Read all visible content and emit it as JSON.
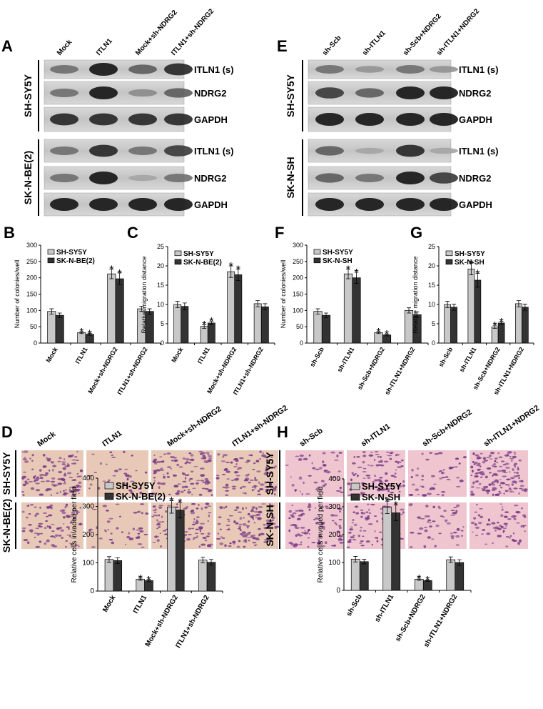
{
  "blots": [
    {
      "letter": "A",
      "columns": [
        "Mock",
        "ITLN1",
        "Mock+sh-NDRG2",
        "ITLN1+sh-NDRG2"
      ],
      "cell_lines": [
        "SH-SY5Y",
        "SK-N-BE(2)"
      ],
      "proteins": [
        "ITLN1 (s)",
        "NDRG2",
        "GAPDH"
      ]
    },
    {
      "letter": "E",
      "columns": [
        "sh-Scb",
        "sh-ITLN1",
        "sh-Scb+NDRG2",
        "sh-ITLN1+NDRG2"
      ],
      "cell_lines": [
        "SH-SY5Y",
        "SK-N-SH"
      ],
      "proteins": [
        "ITLN1 (s)",
        "NDRG2",
        "GAPDH"
      ]
    }
  ],
  "micrographs": [
    {
      "letter": "D",
      "columns": [
        "Mock",
        "ITLN1",
        "Mock+sh-NDRG2",
        "ITLN1+sh-NDRG2"
      ],
      "cell_lines": [
        "SH-SY5Y",
        "SK-N-BE(2)"
      ]
    },
    {
      "letter": "H",
      "columns": [
        "sh-Scb",
        "sh-ITLN1",
        "sh-Scb+NDRG2",
        "sh-ITLN1+NDRG2"
      ],
      "cell_lines": [
        "SH-SY5Y",
        "SK-N-SH"
      ]
    }
  ],
  "chart_data": [
    {
      "type": "bar",
      "letter": "B",
      "y_label": "Number of colonies/well",
      "categories": [
        "Mock",
        "ITLN1",
        "Mock+sh-NDRG2",
        "ITLN1+sh-NDRG2"
      ],
      "ylim": [
        0,
        300
      ],
      "yticks": [
        0,
        50,
        100,
        150,
        200,
        250,
        300
      ],
      "series": [
        {
          "name": "SH-SY5Y",
          "color": "#c8c8c8",
          "values": [
            97,
            32,
            212,
            105
          ],
          "errors": [
            8,
            3,
            15,
            8
          ],
          "annotations": [
            null,
            "*",
            "*",
            null
          ]
        },
        {
          "name": "SK-N-BE(2)",
          "color": "#333333",
          "values": [
            85,
            27,
            197,
            97
          ],
          "errors": [
            7,
            3,
            18,
            8
          ],
          "annotations": [
            null,
            "*",
            "*",
            null
          ]
        }
      ]
    },
    {
      "type": "bar",
      "letter": "C",
      "y_label": "Relative migration distance",
      "categories": [
        "Mock",
        "ITLN1",
        "Mock+sh-NDRG2",
        "ITLN1+sh-NDRG2"
      ],
      "ylim": [
        0,
        25
      ],
      "yticks": [
        0,
        5,
        10,
        15,
        20,
        25
      ],
      "series": [
        {
          "name": "SH-SY5Y",
          "color": "#c8c8c8",
          "values": [
            10,
            4.3,
            18.5,
            10.2
          ],
          "errors": [
            0.8,
            0.5,
            1.5,
            0.8
          ],
          "annotations": [
            null,
            "*",
            "*",
            null
          ]
        },
        {
          "name": "SK-N-BE(2)",
          "color": "#333333",
          "values": [
            9.5,
            5.2,
            17.7,
            9.4
          ],
          "errors": [
            0.9,
            0.5,
            1.5,
            0.8
          ],
          "annotations": [
            null,
            "*",
            "*",
            null
          ]
        }
      ]
    },
    {
      "type": "bar",
      "letter": "F",
      "y_label": "Number of colonies/well",
      "categories": [
        "sh-Scb",
        "sh-ITLN1",
        "sh-Scb+NDRG2",
        "sh-ITLN1+NDRG2"
      ],
      "ylim": [
        0,
        300
      ],
      "yticks": [
        0,
        50,
        100,
        150,
        200,
        250,
        300
      ],
      "series": [
        {
          "name": "SH-SY5Y",
          "color": "#c8c8c8",
          "values": [
            97,
            212,
            32,
            100
          ],
          "errors": [
            8,
            15,
            3,
            8
          ],
          "annotations": [
            null,
            "*",
            "*",
            null
          ]
        },
        {
          "name": "SK-N-SH",
          "color": "#333333",
          "values": [
            85,
            200,
            25,
            87
          ],
          "errors": [
            7,
            17,
            3,
            8
          ],
          "annotations": [
            null,
            "*",
            "*",
            null
          ]
        }
      ]
    },
    {
      "type": "bar",
      "letter": "G",
      "y_label": "Relative migration distance",
      "categories": [
        "sh-Scb",
        "sh-ITLN1",
        "sh-Scb+NDRG2",
        "sh-ITLN1+NDRG2"
      ],
      "ylim": [
        0,
        25
      ],
      "yticks": [
        0,
        5,
        10,
        15,
        20,
        25
      ],
      "series": [
        {
          "name": "SH-SY5Y",
          "color": "#c8c8c8",
          "values": [
            10,
            19.2,
            4.2,
            10.2
          ],
          "errors": [
            0.8,
            1.5,
            0.4,
            0.8
          ],
          "annotations": [
            null,
            "*",
            "*",
            null
          ]
        },
        {
          "name": "SK-N-SH",
          "color": "#333333",
          "values": [
            9.3,
            16.3,
            5.2,
            9.3
          ],
          "errors": [
            0.8,
            1.8,
            0.4,
            0.8
          ],
          "annotations": [
            null,
            "*",
            "*",
            null
          ]
        }
      ]
    },
    {
      "type": "bar",
      "y_label": "Relative cells invaded per field",
      "categories": [
        "Mock",
        "ITLN1",
        "Mock+sh-NDRG2",
        "ITLN1+sh-NDRG2"
      ],
      "ylim": [
        0,
        400
      ],
      "yticks": [
        0,
        100,
        200,
        300,
        400
      ],
      "series": [
        {
          "name": "SH-SY5Y",
          "color": "#c8c8c8",
          "values": [
            112,
            42,
            298,
            110
          ],
          "errors": [
            10,
            4,
            22,
            10
          ],
          "annotations": [
            null,
            "*",
            "*",
            null
          ]
        },
        {
          "name": "SK-N-BE(2)",
          "color": "#333333",
          "values": [
            108,
            37,
            287,
            102
          ],
          "errors": [
            10,
            4,
            28,
            10
          ],
          "annotations": [
            null,
            "*",
            "*",
            null
          ]
        }
      ]
    },
    {
      "type": "bar",
      "y_label": "Relative cells invaded per field",
      "categories": [
        "sh-Scb",
        "sh-ITLN1",
        "sh-Scb+NDRG2",
        "sh-ITLN1+NDRG2"
      ],
      "ylim": [
        0,
        400
      ],
      "yticks": [
        0,
        100,
        200,
        300,
        400
      ],
      "series": [
        {
          "name": "SH-SY5Y",
          "color": "#c8c8c8",
          "values": [
            112,
            298,
            40,
            110
          ],
          "errors": [
            10,
            22,
            4,
            10
          ],
          "annotations": [
            null,
            "*",
            "*",
            null
          ]
        },
        {
          "name": "SK-N-SH",
          "color": "#333333",
          "values": [
            103,
            278,
            35,
            100
          ],
          "errors": [
            8,
            28,
            3,
            10
          ],
          "annotations": [
            null,
            "*",
            "*",
            null
          ]
        }
      ]
    }
  ]
}
